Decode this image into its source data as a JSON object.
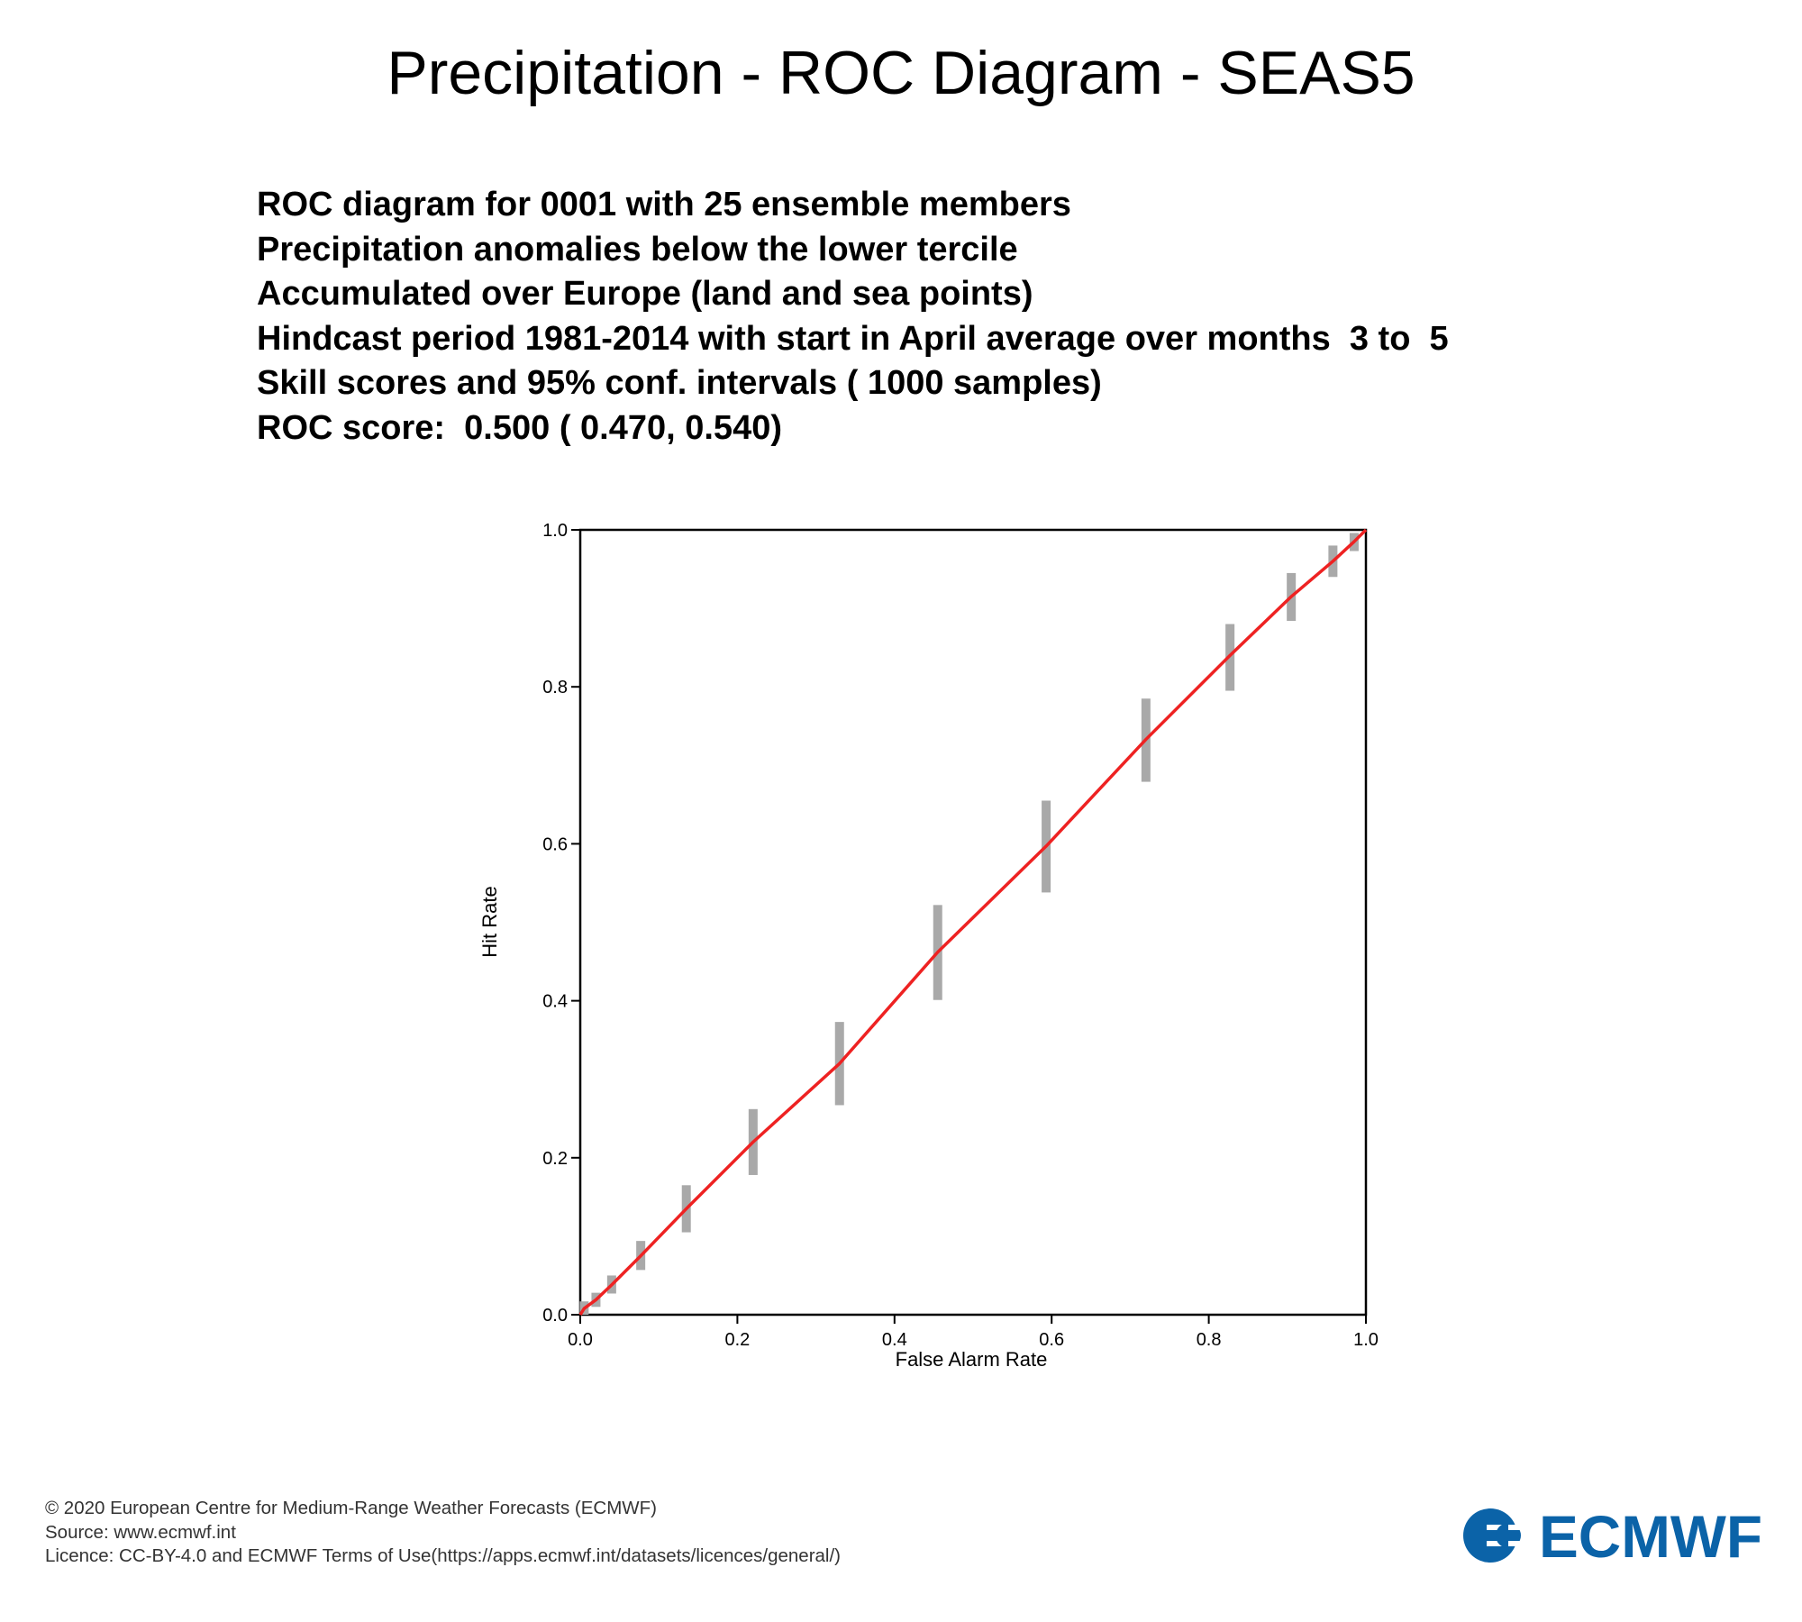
{
  "page_title": "Precipitation - ROC Diagram - SEAS5",
  "info_lines": [
    "ROC diagram for 0001 with 25 ensemble members",
    "Precipitation anomalies below the lower tercile",
    "Accumulated over Europe (land and sea points)",
    "Hindcast period 1981-2014 with start in April average over months  3 to  5",
    "Skill scores and 95% conf. intervals ( 1000 samples)",
    "ROC score:  0.500 ( 0.470, 0.540)"
  ],
  "chart_data": {
    "type": "line",
    "xlabel": "False Alarm Rate",
    "ylabel": "Hit Rate",
    "xlim": [
      0,
      1
    ],
    "ylim": [
      0,
      1
    ],
    "x_ticks": [
      "0.0",
      "0.2",
      "0.4",
      "0.6",
      "0.8",
      "1.0"
    ],
    "y_ticks": [
      "0.0",
      "0.2",
      "0.4",
      "0.6",
      "0.8",
      "1.0"
    ],
    "grid": false,
    "legend": "none",
    "series": [
      {
        "x": [
          0.0,
          0.005,
          0.02,
          0.04,
          0.077,
          0.135,
          0.22,
          0.33,
          0.455,
          0.593,
          0.72,
          0.827,
          0.905,
          0.958,
          0.985,
          1.0
        ],
        "y": [
          0.0,
          0.008,
          0.019,
          0.038,
          0.075,
          0.135,
          0.22,
          0.32,
          0.462,
          0.597,
          0.733,
          0.84,
          0.915,
          0.96,
          0.985,
          1.0
        ],
        "y_lower": [
          null,
          0.0,
          0.01,
          0.027,
          0.057,
          0.105,
          0.178,
          0.267,
          0.401,
          0.538,
          0.679,
          0.795,
          0.884,
          0.94,
          0.973,
          null
        ],
        "y_upper": [
          null,
          0.017,
          0.028,
          0.05,
          0.094,
          0.165,
          0.262,
          0.373,
          0.522,
          0.655,
          0.785,
          0.88,
          0.945,
          0.98,
          0.996,
          null
        ]
      }
    ],
    "colors": {
      "line": "#ee2222",
      "error_bar": "#a9a9a9",
      "axis": "#000000"
    }
  },
  "footer_lines": [
    "© 2020 European Centre for Medium-Range Weather Forecasts (ECMWF)",
    "Source: www.ecmwf.int",
    "Licence: CC-BY-4.0 and ECMWF Terms of Use(https://apps.ecmwf.int/datasets/licences/general/)"
  ],
  "logo": {
    "text": "ECMWF",
    "color": "#0b63a8"
  }
}
